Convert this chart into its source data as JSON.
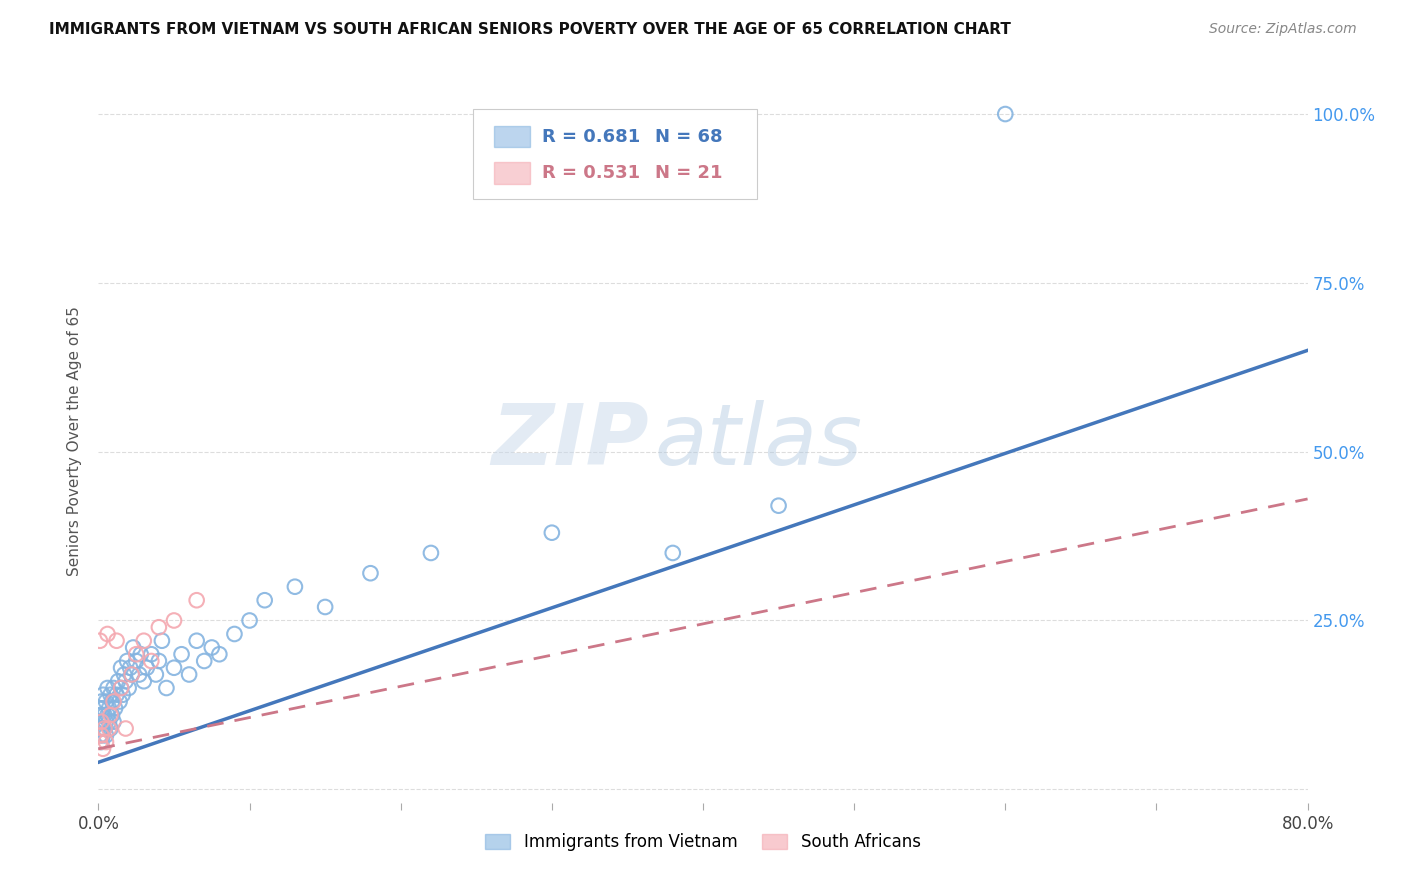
{
  "title": "IMMIGRANTS FROM VIETNAM VS SOUTH AFRICAN SENIORS POVERTY OVER THE AGE OF 65 CORRELATION CHART",
  "source": "Source: ZipAtlas.com",
  "ylabel": "Seniors Poverty Over the Age of 65",
  "ytick_labels": [
    "",
    "25.0%",
    "50.0%",
    "75.0%",
    "100.0%"
  ],
  "ytick_values": [
    0.0,
    0.25,
    0.5,
    0.75,
    1.0
  ],
  "xlim": [
    0.0,
    0.8
  ],
  "ylim": [
    -0.02,
    1.05
  ],
  "legend_blue_r": "R = 0.681",
  "legend_blue_n": "N = 68",
  "legend_pink_r": "R = 0.531",
  "legend_pink_n": "N = 21",
  "legend_label_blue": "Immigrants from Vietnam",
  "legend_label_pink": "South Africans",
  "blue_color": "#85b4e0",
  "pink_color": "#f4a8b0",
  "trendline_blue_color": "#4477bb",
  "trendline_pink_color": "#cc7788",
  "watermark_zip": "ZIP",
  "watermark_atlas": "atlas",
  "blue_trendline_x": [
    0.0,
    0.8
  ],
  "blue_trendline_y": [
    0.04,
    0.65
  ],
  "pink_trendline_x": [
    0.0,
    0.8
  ],
  "pink_trendline_y": [
    0.06,
    0.43
  ],
  "blue_scatter_x": [
    0.001,
    0.001,
    0.001,
    0.002,
    0.002,
    0.002,
    0.002,
    0.003,
    0.003,
    0.003,
    0.003,
    0.004,
    0.004,
    0.005,
    0.005,
    0.005,
    0.006,
    0.006,
    0.007,
    0.007,
    0.008,
    0.008,
    0.009,
    0.009,
    0.01,
    0.01,
    0.011,
    0.012,
    0.013,
    0.014,
    0.015,
    0.015,
    0.016,
    0.017,
    0.018,
    0.019,
    0.02,
    0.021,
    0.022,
    0.023,
    0.025,
    0.027,
    0.028,
    0.03,
    0.032,
    0.035,
    0.038,
    0.04,
    0.042,
    0.045,
    0.05,
    0.055,
    0.06,
    0.065,
    0.07,
    0.075,
    0.08,
    0.09,
    0.1,
    0.11,
    0.13,
    0.15,
    0.18,
    0.22,
    0.3,
    0.38,
    0.45,
    0.6
  ],
  "blue_scatter_y": [
    0.08,
    0.1,
    0.12,
    0.07,
    0.09,
    0.11,
    0.13,
    0.08,
    0.1,
    0.12,
    0.14,
    0.09,
    0.11,
    0.08,
    0.1,
    0.13,
    0.11,
    0.15,
    0.1,
    0.12,
    0.09,
    0.14,
    0.11,
    0.13,
    0.1,
    0.15,
    0.12,
    0.14,
    0.16,
    0.13,
    0.15,
    0.18,
    0.14,
    0.17,
    0.16,
    0.19,
    0.15,
    0.18,
    0.17,
    0.21,
    0.19,
    0.17,
    0.2,
    0.16,
    0.18,
    0.2,
    0.17,
    0.19,
    0.22,
    0.15,
    0.18,
    0.2,
    0.17,
    0.22,
    0.19,
    0.21,
    0.2,
    0.23,
    0.25,
    0.28,
    0.3,
    0.27,
    0.32,
    0.35,
    0.38,
    0.35,
    0.42,
    1.0
  ],
  "pink_scatter_x": [
    0.001,
    0.001,
    0.002,
    0.002,
    0.003,
    0.004,
    0.005,
    0.006,
    0.007,
    0.008,
    0.01,
    0.012,
    0.015,
    0.018,
    0.022,
    0.025,
    0.03,
    0.035,
    0.04,
    0.05,
    0.065
  ],
  "pink_scatter_y": [
    0.07,
    0.22,
    0.08,
    0.1,
    0.06,
    0.09,
    0.07,
    0.23,
    0.09,
    0.11,
    0.13,
    0.22,
    0.15,
    0.09,
    0.17,
    0.2,
    0.22,
    0.19,
    0.24,
    0.25,
    0.28
  ]
}
